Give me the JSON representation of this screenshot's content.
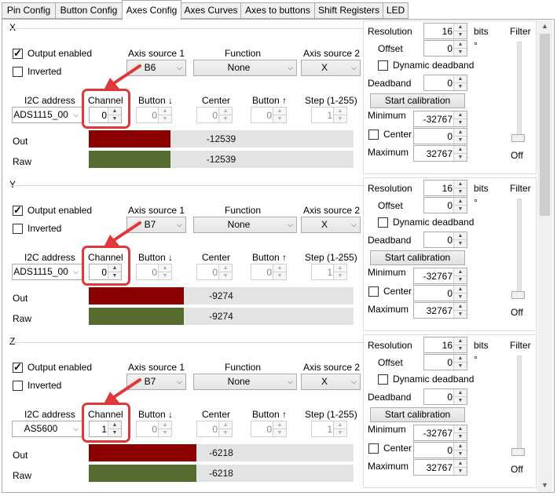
{
  "tabs": [
    {
      "label": "Pin Config",
      "active": false
    },
    {
      "label": "Button Config",
      "active": false
    },
    {
      "label": "Axes Config",
      "active": true
    },
    {
      "label": "Axes Curves",
      "active": false
    },
    {
      "label": "Axes to buttons",
      "active": false
    },
    {
      "label": "Shift Registers",
      "active": false
    },
    {
      "label": "LED",
      "active": false
    }
  ],
  "labels": {
    "output_enabled": "Output enabled",
    "inverted": "Inverted",
    "axis_source_1": "Axis source 1",
    "function": "Function",
    "axis_source_2": "Axis source 2",
    "i2c_address": "I2C address",
    "channel": "Channel",
    "button_down": "Button ↓",
    "center": "Center",
    "button_up": "Button ↑",
    "step": "Step (1-255)",
    "out": "Out",
    "raw": "Raw",
    "resolution": "Resolution",
    "bits": "bits",
    "filter": "Filter",
    "offset": "Offset",
    "degree": "°",
    "dynamic_deadband": "Dynamic deadband",
    "deadband": "Deadband",
    "start_calibration": "Start calibration",
    "minimum": "Minimum",
    "center_chk": "Center",
    "maximum": "Maximum",
    "filter_off": "Off"
  },
  "axes": [
    {
      "name": "X",
      "output_enabled": true,
      "inverted": false,
      "axis_source_1": "B6",
      "function": "None",
      "axis_source_2": "X",
      "i2c_address": "ADS1115_00",
      "channel": "0",
      "button_down": "0",
      "center": "0",
      "button_up": "0",
      "step": "1",
      "out_value": "-12539",
      "raw_value": "-12539",
      "out_fill_pct": 0.3087,
      "raw_fill_pct": 0.3087,
      "resolution": "16",
      "offset": "0",
      "dynamic_deadband": false,
      "deadband": "0",
      "minimum": "-32767",
      "center_enabled": false,
      "center_value": "0",
      "maximum": "32767"
    },
    {
      "name": "Y",
      "output_enabled": true,
      "inverted": false,
      "axis_source_1": "B7",
      "function": "None",
      "axis_source_2": "X",
      "i2c_address": "ADS1115_00",
      "channel": "0",
      "button_down": "0",
      "center": "0",
      "button_up": "0",
      "step": "1",
      "out_value": "-9274",
      "raw_value": "-9274",
      "out_fill_pct": 0.3585,
      "raw_fill_pct": 0.3585,
      "resolution": "16",
      "offset": "0",
      "dynamic_deadband": false,
      "deadband": "0",
      "minimum": "-32767",
      "center_enabled": false,
      "center_value": "0",
      "maximum": "32767"
    },
    {
      "name": "Z",
      "output_enabled": true,
      "inverted": false,
      "axis_source_1": "B7",
      "function": "None",
      "axis_source_2": "X",
      "i2c_address": "AS5600",
      "channel": "1",
      "button_down": "0",
      "center": "0",
      "button_up": "0",
      "step": "1",
      "out_value": "-6218",
      "raw_value": "-6218",
      "out_fill_pct": 0.4051,
      "raw_fill_pct": 0.4051,
      "resolution": "16",
      "offset": "0",
      "dynamic_deadband": false,
      "deadband": "0",
      "minimum": "-32767",
      "center_enabled": false,
      "center_value": "0",
      "maximum": "32767"
    }
  ],
  "colors": {
    "out_bar": "#8b0000",
    "raw_bar": "#556b2f",
    "highlight": "#e0373a"
  }
}
